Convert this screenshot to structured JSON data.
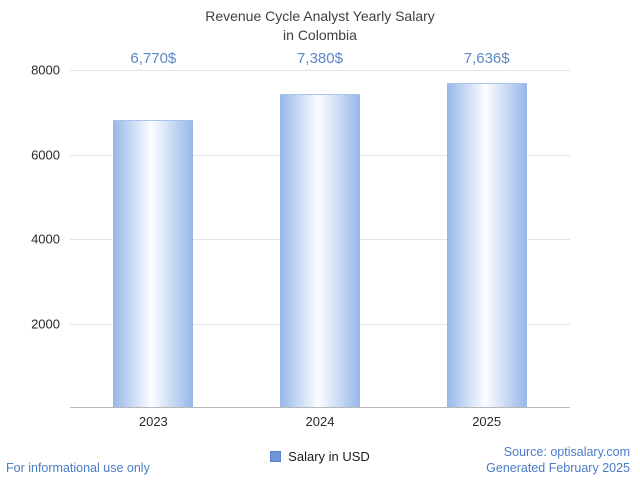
{
  "title": {
    "line1": "Revenue Cycle Analyst Yearly Salary",
    "line2": "in Colombia"
  },
  "chart_data": {
    "type": "bar",
    "title": "Revenue Cycle Analyst Yearly Salary in Colombia",
    "categories": [
      "2023",
      "2024",
      "2025"
    ],
    "values": [
      6770,
      7380,
      7636
    ],
    "value_labels": [
      "6,770$",
      "7,380$",
      "7,636$"
    ],
    "xlabel": "",
    "ylabel": "",
    "ylim": [
      0,
      8000
    ],
    "yticks": [
      2000,
      4000,
      6000,
      8000
    ],
    "grid": true,
    "legend": {
      "label": "Salary in USD",
      "position": "bottom"
    },
    "colors": {
      "bar_edge": "#96b7e8",
      "bar_center": "#fcfdff",
      "value_label": "#5b87c5",
      "legend_swatch": "#7096d8",
      "footer_text": "#4a7cc7",
      "title_text": "#3f3f3f"
    }
  },
  "footer": {
    "left": "For informational use only",
    "source": "Source: optisalary.com",
    "generated": "Generated February 2025"
  }
}
